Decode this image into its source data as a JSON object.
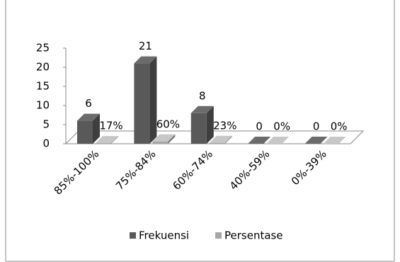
{
  "chart_data": {
    "type": "bar3d",
    "categories": [
      "85%-100%",
      "75%-84%",
      "60%-74%",
      "40%-59%",
      "0%-39%"
    ],
    "series": [
      {
        "name": "Frekuensi",
        "color": "#595959",
        "values": [
          6,
          21,
          8,
          0,
          0
        ]
      },
      {
        "name": "Persentase",
        "color": "#a6a6a6",
        "values": [
          0.17,
          0.6,
          0.23,
          0,
          0
        ],
        "value_labels": [
          "17%",
          "60%",
          "23%",
          "0%",
          "0%"
        ]
      }
    ],
    "ylim": [
      0,
      25
    ],
    "yticks": [
      0,
      5,
      10,
      15,
      20,
      25
    ],
    "grid": false,
    "legend": "bottom"
  }
}
